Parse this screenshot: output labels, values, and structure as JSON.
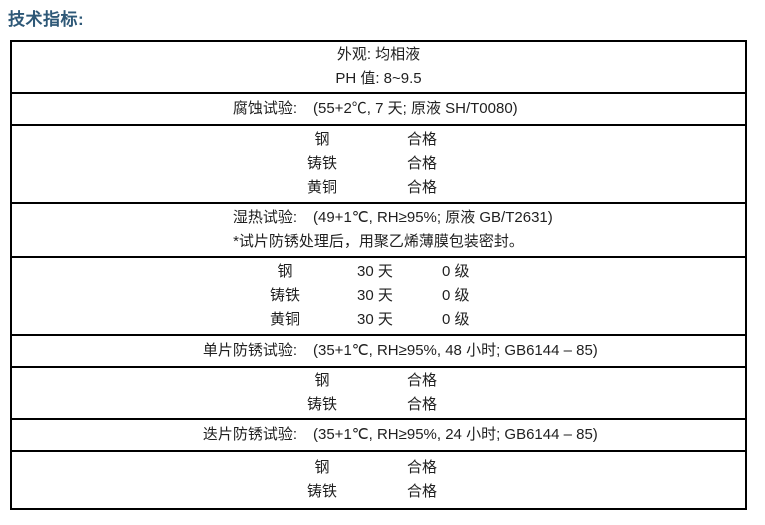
{
  "page": {
    "title": "技术指标:"
  },
  "table": {
    "sections": [
      {
        "type": "centered-lines",
        "lines": [
          "外观: 均相液",
          "PH 值: 8~9.5"
        ]
      },
      {
        "type": "test-header",
        "label": "腐蚀试验:",
        "value": "(55+2℃, 7 天; 原液 SH/T0080)"
      },
      {
        "type": "metal-result",
        "rows": [
          [
            "钢",
            "合格"
          ],
          [
            "铸铁",
            "合格"
          ],
          [
            "黄铜",
            "合格"
          ]
        ]
      },
      {
        "type": "test-header-with-note",
        "label": "湿热试验:",
        "value": "(49+1℃, RH≥95%; 原液 GB/T2631)",
        "note": "*试片防锈处理后，用聚乙烯薄膜包装密封。"
      },
      {
        "type": "metal-days-grade",
        "rows": [
          [
            "钢",
            "30 天",
            "0 级"
          ],
          [
            "铸铁",
            "30 天",
            "0 级"
          ],
          [
            "黄铜",
            "30 天",
            "0 级"
          ]
        ]
      },
      {
        "type": "test-header",
        "label": "单片防锈试验:",
        "value": "(35+1℃, RH≥95%, 48 小时; GB6144 – 85)"
      },
      {
        "type": "metal-result",
        "rows": [
          [
            "钢",
            "合格"
          ],
          [
            "铸铁",
            "合格"
          ]
        ]
      },
      {
        "type": "test-header",
        "label": "迭片防锈试验:",
        "value": "(35+1℃, RH≥95%, 24 小时; GB6144 – 85)"
      },
      {
        "type": "metal-result",
        "rows": [
          [
            "钢",
            "合格"
          ],
          [
            "铸铁",
            "合格"
          ]
        ]
      }
    ]
  }
}
